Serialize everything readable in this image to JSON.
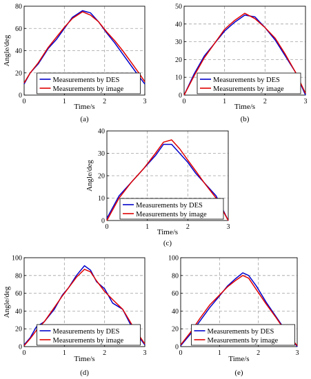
{
  "chart_data": [
    {
      "type": "line",
      "caption": "(a)",
      "xlabel": "Time/s",
      "ylabel": "Angle/deg",
      "xlim": [
        0,
        3
      ],
      "ylim": [
        0,
        80
      ],
      "xticks": [
        0,
        1,
        2,
        3
      ],
      "yticks": [
        0,
        20,
        40,
        60,
        80
      ],
      "grid": true,
      "legend": "lower-center",
      "series": [
        {
          "name": "Measurements by DES",
          "color": "#0000cc",
          "x": [
            0,
            0.15,
            0.35,
            0.6,
            0.8,
            1.0,
            1.2,
            1.45,
            1.65,
            1.85,
            2.05,
            2.25,
            2.45,
            2.65,
            2.85,
            3.0
          ],
          "y": [
            10,
            20,
            28,
            42,
            50,
            60,
            70,
            76,
            74,
            66,
            56,
            47,
            37,
            27,
            17,
            10
          ]
        },
        {
          "name": "Measurements by image",
          "color": "#e00000",
          "x": [
            0,
            0.15,
            0.35,
            0.6,
            0.8,
            1.0,
            1.2,
            1.45,
            1.65,
            1.85,
            2.05,
            2.25,
            2.45,
            2.65,
            2.85,
            3.0
          ],
          "y": [
            11,
            20,
            29,
            43,
            52,
            61,
            69,
            75,
            72,
            66,
            57,
            49,
            40,
            30,
            20,
            12
          ]
        }
      ]
    },
    {
      "type": "line",
      "caption": "(b)",
      "xlabel": "Time/s",
      "ylabel": "",
      "xlim": [
        0,
        3
      ],
      "ylim": [
        0,
        50
      ],
      "xticks": [
        0,
        1,
        2,
        3
      ],
      "yticks": [
        0,
        10,
        20,
        30,
        40,
        50
      ],
      "grid": true,
      "legend": "lower-center",
      "series": [
        {
          "name": "Measurements by DES",
          "color": "#0000cc",
          "x": [
            0,
            0.25,
            0.5,
            0.75,
            1.0,
            1.25,
            1.5,
            1.75,
            2.0,
            2.25,
            2.5,
            2.75,
            3.0
          ],
          "y": [
            0,
            12,
            22,
            29,
            36,
            41,
            45,
            44,
            38,
            31,
            22,
            13,
            0
          ]
        },
        {
          "name": "Measurements by image",
          "color": "#e00000",
          "x": [
            0,
            0.25,
            0.5,
            0.75,
            1.0,
            1.25,
            1.5,
            1.75,
            2.0,
            2.25,
            2.5,
            2.75,
            3.0
          ],
          "y": [
            0,
            11,
            21,
            29,
            37,
            42,
            46,
            43,
            38,
            32,
            23,
            13,
            1
          ]
        }
      ]
    },
    {
      "type": "line",
      "caption": "(c)",
      "xlabel": "Time/s",
      "ylabel": "Angle/deg",
      "xlim": [
        0,
        3
      ],
      "ylim": [
        0,
        40
      ],
      "xticks": [
        0,
        1,
        2,
        3
      ],
      "yticks": [
        0,
        10,
        20,
        30,
        40
      ],
      "grid": true,
      "legend": "lower-center",
      "series": [
        {
          "name": "Measurements by DES",
          "color": "#0000cc",
          "x": [
            0,
            0.3,
            0.6,
            0.9,
            1.2,
            1.4,
            1.6,
            1.8,
            2.0,
            2.2,
            2.4,
            2.7,
            3.0
          ],
          "y": [
            1,
            11,
            17,
            23,
            29,
            34,
            34,
            30,
            26,
            21,
            17,
            11,
            0
          ]
        },
        {
          "name": "Measurements by image",
          "color": "#e00000",
          "x": [
            0,
            0.3,
            0.6,
            0.9,
            1.2,
            1.4,
            1.6,
            1.8,
            2.0,
            2.2,
            2.4,
            2.7,
            3.0
          ],
          "y": [
            0,
            10,
            17,
            23,
            30,
            35,
            36,
            32,
            27,
            22,
            17,
            10,
            0
          ]
        }
      ]
    },
    {
      "type": "line",
      "caption": "(d)",
      "xlabel": "Time/s",
      "ylabel": "Angle/deg",
      "xlim": [
        0,
        3
      ],
      "ylim": [
        0,
        100
      ],
      "xticks": [
        0,
        1,
        2,
        3
      ],
      "yticks": [
        0,
        20,
        40,
        60,
        80,
        100
      ],
      "grid": true,
      "legend": "lower-center",
      "series": [
        {
          "name": "Measurements by DES",
          "color": "#0000cc",
          "x": [
            0,
            0.15,
            0.3,
            0.5,
            0.75,
            0.95,
            1.1,
            1.3,
            1.5,
            1.65,
            1.8,
            2.0,
            2.2,
            2.45,
            2.7,
            3.0
          ],
          "y": [
            2,
            10,
            22,
            28,
            42,
            58,
            66,
            80,
            91,
            86,
            73,
            65,
            49,
            42,
            20,
            2
          ]
        },
        {
          "name": "Measurements by image",
          "color": "#e00000",
          "x": [
            0,
            0.15,
            0.3,
            0.5,
            0.75,
            0.95,
            1.1,
            1.3,
            1.5,
            1.65,
            1.8,
            2.0,
            2.2,
            2.45,
            2.7,
            3.0
          ],
          "y": [
            1,
            9,
            18,
            28,
            44,
            57,
            66,
            78,
            87,
            84,
            74,
            62,
            53,
            42,
            23,
            3
          ]
        }
      ]
    },
    {
      "type": "line",
      "caption": "(e)",
      "xlabel": "Time/s",
      "ylabel": "",
      "xlim": [
        0,
        3
      ],
      "ylim": [
        0,
        100
      ],
      "xticks": [
        0,
        1,
        2,
        3
      ],
      "yticks": [
        0,
        20,
        40,
        60,
        80,
        100
      ],
      "grid": true,
      "legend": "lower-center",
      "series": [
        {
          "name": "Measurements by DES",
          "color": "#0000cc",
          "x": [
            0,
            0.25,
            0.5,
            0.75,
            1.0,
            1.2,
            1.4,
            1.6,
            1.75,
            1.95,
            2.2,
            2.45,
            2.7,
            3.0
          ],
          "y": [
            1,
            14,
            29,
            44,
            57,
            68,
            76,
            83,
            80,
            68,
            50,
            34,
            18,
            0
          ]
        },
        {
          "name": "Measurements by image",
          "color": "#e00000",
          "x": [
            0,
            0.25,
            0.5,
            0.75,
            1.0,
            1.2,
            1.4,
            1.6,
            1.75,
            1.95,
            2.2,
            2.45,
            2.7,
            3.0
          ],
          "y": [
            2,
            16,
            32,
            47,
            58,
            67,
            74,
            80,
            77,
            64,
            48,
            33,
            17,
            1
          ]
        }
      ]
    }
  ]
}
